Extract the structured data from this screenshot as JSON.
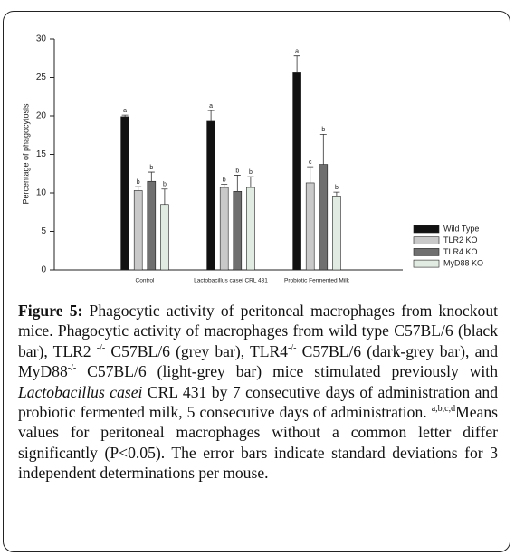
{
  "chart_data": {
    "type": "bar",
    "y_label": "Percentage of phagocytosis",
    "categories": [
      "Control",
      "Lactobacillus casei CRL 431",
      "Probiotic Fermented Milk"
    ],
    "ylim": [
      0,
      30
    ],
    "yticks": [
      0,
      5,
      10,
      15,
      20,
      25,
      30
    ],
    "legend": "right",
    "series": [
      {
        "name": "Wild Type",
        "color": "#111111",
        "values": [
          19.9,
          19.3,
          25.6
        ],
        "errors": [
          0.2,
          1.4,
          2.2
        ],
        "annotations": [
          "a",
          "a",
          "a"
        ]
      },
      {
        "name": "TLR2 KO",
        "color": "#c9c9c9",
        "values": [
          10.3,
          10.7,
          11.3
        ],
        "errors": [
          0.5,
          0.4,
          2.1
        ],
        "annotations": [
          "b",
          "b",
          "c"
        ]
      },
      {
        "name": "TLR4 KO",
        "color": "#6f6f6f",
        "values": [
          11.5,
          10.2,
          13.7
        ],
        "errors": [
          1.2,
          2.1,
          3.9
        ],
        "annotations": [
          "b",
          "b",
          "b"
        ]
      },
      {
        "name": "MyD88 KO",
        "color": "#e2ebe2",
        "values": [
          8.5,
          10.7,
          9.6
        ],
        "errors": [
          2.0,
          1.4,
          0.5
        ],
        "annotations": [
          "b",
          "b",
          "b"
        ]
      }
    ]
  },
  "caption": {
    "parts": [
      "Figure 5:",
      " Phagocytic activity of peritoneal macrophages from knockout mice. Phagocytic activity of macrophages from wild type C57BL/6 (black bar), TLR2 ",
      "-/-",
      " C57BL/6 (grey bar), TLR4",
      "-/-",
      " C57BL/6 (dark-grey bar), and MyD88",
      "-/-",
      " C57BL/6 (light-grey bar) mice stimulated previously with ",
      "Lactobacillus casei",
      " CRL 431 by 7 consecutive days of administration and probiotic fermented milk, 5 consecutive days of administration. ",
      "a,b,c,d",
      "Means values for peritoneal macrophages without a common letter differ significantly (P<0.05). The error bars indicate standard deviations for 3 independent determinations per mouse."
    ]
  }
}
